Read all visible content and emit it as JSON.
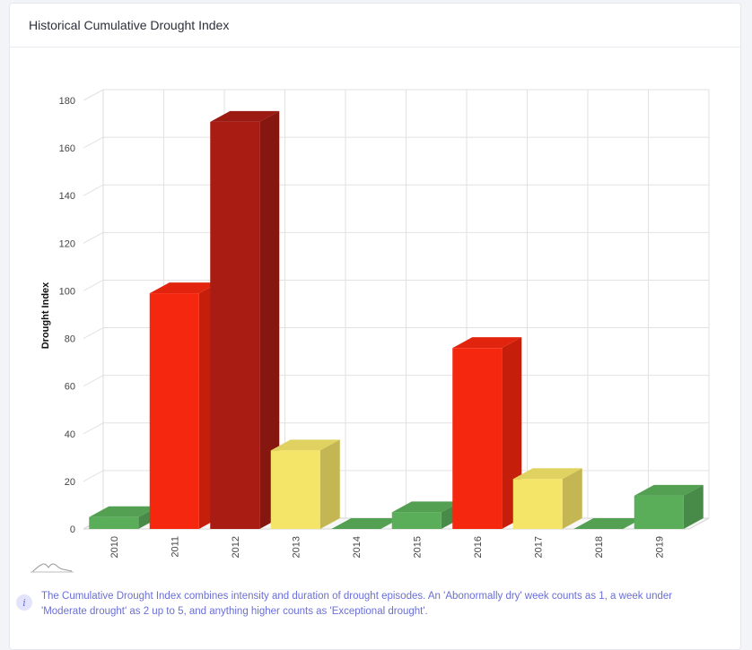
{
  "card": {
    "title": "Historical Cumulative Drought Index"
  },
  "note": {
    "text": "The Cumulative Drought Index combines intensity and duration of drought episodes. An 'Abonormally dry' week counts as 1, a week under 'Moderate drought' as 2 up to 5, and anything higher counts as 'Exceptional drought'."
  },
  "chart_data": {
    "type": "bar",
    "categories": [
      "2010",
      "2011",
      "2012",
      "2013",
      "2014",
      "2015",
      "2016",
      "2017",
      "2018",
      "2019"
    ],
    "values": [
      5,
      99,
      171,
      33,
      0,
      7,
      76,
      21,
      0,
      14
    ],
    "colors": [
      "#5aae5a",
      "#f6270f",
      "#a81c14",
      "#f4e468",
      "#5aae5a",
      "#5aae5a",
      "#f6270f",
      "#f4e468",
      "#5aae5a",
      "#5aae5a"
    ],
    "ylabel": "Drought Index",
    "xlabel": "",
    "ylim": [
      0,
      180
    ],
    "yticks": [
      0,
      20,
      40,
      60,
      80,
      100,
      120,
      140,
      160,
      180
    ],
    "grid": true,
    "style": "3d-column"
  }
}
